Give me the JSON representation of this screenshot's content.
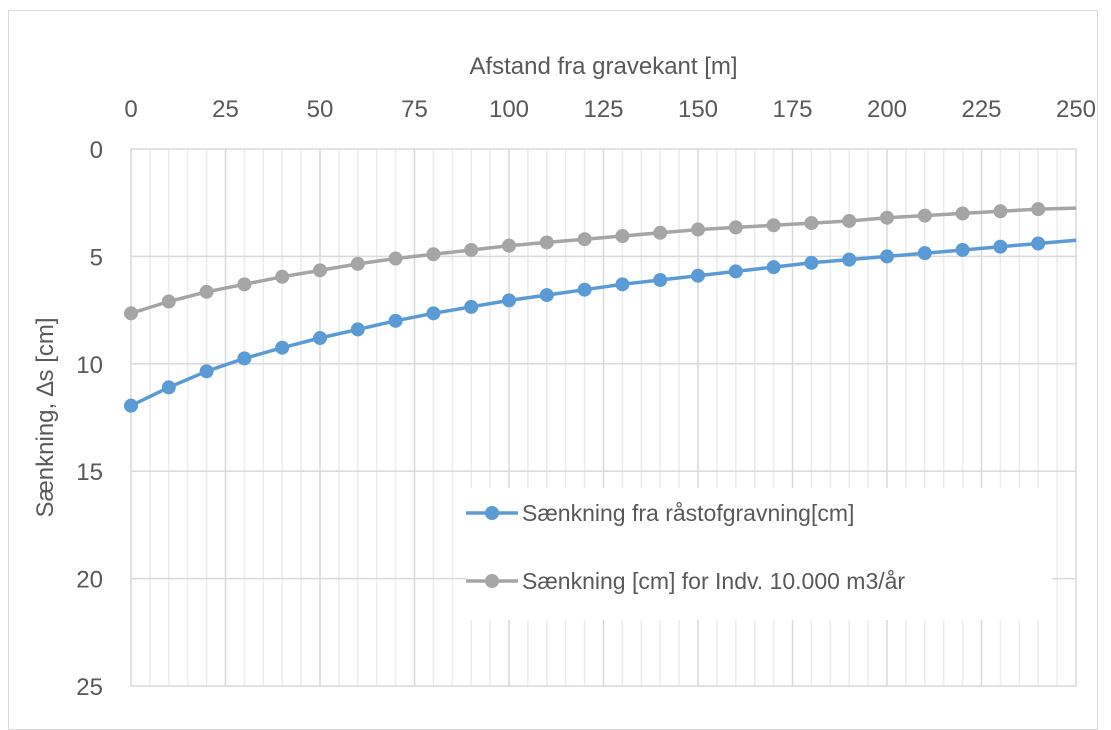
{
  "chart_data": {
    "type": "line",
    "title": "",
    "xlabel": "Afstand fra gravekant [m]",
    "ylabel": "Sænkning, ∆s [cm]",
    "x_axis_position": "top",
    "y_axis_reversed": true,
    "xlim": [
      0,
      250
    ],
    "ylim": [
      0,
      25
    ],
    "x_ticks": [
      "0",
      "25",
      "50",
      "75",
      "100",
      "125",
      "150",
      "175",
      "200",
      "225",
      "250"
    ],
    "y_ticks": [
      "0",
      "5",
      "10",
      "15",
      "20",
      "25"
    ],
    "x_major_step": 25,
    "x_minor_step": 5,
    "y_major_step": 5,
    "grid": true,
    "legend_position": "lower-right-inside",
    "x": [
      0,
      10,
      20,
      30,
      40,
      50,
      60,
      70,
      80,
      90,
      100,
      110,
      120,
      130,
      140,
      150,
      160,
      170,
      180,
      190,
      200,
      210,
      220,
      230,
      240,
      250
    ],
    "series": [
      {
        "name": "Sænkning fra råstofgravning[cm]",
        "color": "#5b9bd5",
        "values": [
          11.95,
          11.1,
          10.35,
          9.75,
          9.25,
          8.8,
          8.4,
          8.0,
          7.65,
          7.35,
          7.05,
          6.8,
          6.55,
          6.3,
          6.1,
          5.9,
          5.7,
          5.5,
          5.3,
          5.15,
          5.0,
          4.85,
          4.7,
          4.55,
          4.4,
          4.25
        ],
        "markers_until": 240
      },
      {
        "name": "Sænkning [cm] for Indv. 10.000 m3/år",
        "color": "#a5a5a5",
        "values": [
          7.65,
          7.1,
          6.65,
          6.3,
          5.95,
          5.65,
          5.35,
          5.1,
          4.9,
          4.7,
          4.5,
          4.35,
          4.2,
          4.05,
          3.9,
          3.75,
          3.65,
          3.55,
          3.45,
          3.35,
          3.2,
          3.1,
          3.0,
          2.9,
          2.8,
          2.75
        ],
        "markers_until": 240
      }
    ]
  }
}
